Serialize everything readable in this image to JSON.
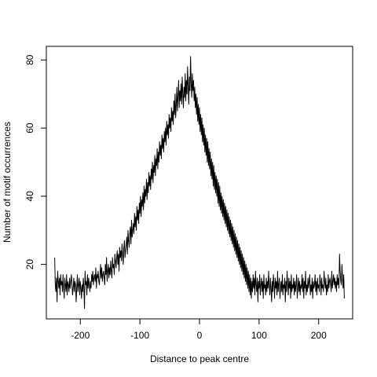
{
  "chart_data": {
    "type": "line",
    "title": "",
    "xlabel": "Distance to peak centre",
    "ylabel": "Number of motif occurrences",
    "xlim": [
      -257,
      257
    ],
    "ylim": [
      4,
      84
    ],
    "xticks": [
      -200,
      -100,
      0,
      100,
      200
    ],
    "xtick_labels": [
      "-200",
      "-100",
      "0",
      "100",
      "200"
    ],
    "yticks": [
      20,
      40,
      60,
      80
    ],
    "ytick_labels": [
      "20",
      "40",
      "60",
      "80"
    ],
    "grid": false,
    "legend": "none",
    "line_color": "#000000",
    "x_start": -243,
    "x_end": 243,
    "x_step": 1,
    "y": [
      22,
      14,
      12,
      16,
      9,
      18,
      15,
      13,
      16,
      11,
      17,
      14,
      15,
      12,
      17,
      13,
      10,
      16,
      14,
      12,
      17,
      11,
      15,
      14,
      12,
      16,
      13,
      15,
      17,
      14,
      11,
      13,
      16,
      12,
      15,
      14,
      9,
      13,
      17,
      12,
      14,
      16,
      11,
      15,
      13,
      10,
      14,
      12,
      16,
      13,
      7,
      18,
      14,
      15,
      11,
      17,
      13,
      16,
      14,
      12,
      15,
      13,
      17,
      15,
      18,
      14,
      16,
      17,
      15,
      19,
      13,
      17,
      16,
      18,
      15,
      14,
      17,
      20,
      16,
      19,
      15,
      17,
      18,
      16,
      14,
      20,
      17,
      22,
      15,
      18,
      20,
      16,
      19,
      17,
      21,
      18,
      16,
      22,
      19,
      20,
      17,
      23,
      21,
      19,
      22,
      24,
      20,
      23,
      18,
      25,
      22,
      24,
      21,
      26,
      23,
      20,
      25,
      27,
      22,
      24,
      26,
      28,
      23,
      30,
      27,
      25,
      29,
      31,
      26,
      33,
      28,
      30,
      32,
      29,
      35,
      31,
      34,
      30,
      37,
      33,
      36,
      32,
      38,
      35,
      40,
      34,
      39,
      37,
      41,
      36,
      43,
      38,
      42,
      40,
      45,
      39,
      44,
      41,
      47,
      43,
      46,
      42,
      48,
      45,
      50,
      44,
      49,
      47,
      52,
      46,
      51,
      49,
      54,
      48,
      53,
      50,
      56,
      52,
      55,
      51,
      58,
      54,
      57,
      53,
      59,
      56,
      60,
      55,
      62,
      58,
      61,
      57,
      64,
      60,
      63,
      59,
      66,
      62,
      65,
      61,
      68,
      64,
      70,
      63,
      67,
      72,
      65,
      69,
      74,
      66,
      71,
      68,
      73,
      67,
      75,
      70,
      66,
      72,
      69,
      76,
      68,
      74,
      70,
      78,
      72,
      67,
      75,
      71,
      81,
      73,
      69,
      76,
      71,
      74,
      68,
      72,
      66,
      70,
      64,
      69,
      62,
      67,
      61,
      66,
      59,
      64,
      58,
      63,
      56,
      61,
      55,
      60,
      53,
      58,
      52,
      57,
      50,
      56,
      49,
      54,
      48,
      53,
      46,
      51,
      45,
      50,
      43,
      49,
      42,
      47,
      41,
      46,
      40,
      45,
      38,
      44,
      37,
      43,
      36,
      41,
      35,
      40,
      34,
      39,
      33,
      38,
      32,
      37,
      31,
      36,
      30,
      35,
      29,
      34,
      28,
      33,
      27,
      32,
      26,
      31,
      25,
      30,
      24,
      29,
      23,
      28,
      22,
      27,
      21,
      26,
      20,
      25,
      19,
      24,
      18,
      23,
      17,
      22,
      16,
      21,
      15,
      20,
      14,
      19,
      13,
      18,
      12,
      17,
      11,
      16,
      10,
      15,
      12,
      17,
      13,
      16,
      11,
      18,
      14,
      12,
      16,
      9,
      15,
      13,
      17,
      11,
      14,
      16,
      12,
      15,
      10,
      17,
      13,
      14,
      11,
      16,
      12,
      15,
      13,
      18,
      14,
      11,
      16,
      13,
      9,
      15,
      12,
      17,
      14,
      10,
      16,
      13,
      15,
      11,
      18,
      12,
      14,
      16,
      10,
      13,
      15,
      12,
      17,
      11,
      14,
      13,
      16,
      9,
      15,
      12,
      18,
      14,
      11,
      16,
      13,
      15,
      10,
      17,
      12,
      14,
      13,
      16,
      11,
      15,
      12,
      14,
      17,
      10,
      13,
      16,
      12,
      15,
      11,
      14,
      13,
      17,
      12,
      16,
      10,
      15,
      13,
      18,
      11,
      14,
      12,
      16,
      13,
      15,
      17,
      11,
      14,
      12,
      16,
      10,
      15,
      13,
      14,
      17,
      12,
      15,
      11,
      16,
      13,
      14,
      12,
      17,
      15,
      11,
      16,
      13,
      14,
      12,
      18,
      15,
      13,
      16,
      11,
      14,
      12,
      17,
      13,
      15,
      16,
      14,
      12,
      18,
      13,
      15,
      17,
      14,
      16,
      13,
      15,
      12,
      17,
      14,
      16,
      13,
      23,
      18,
      15,
      14,
      20,
      16,
      13,
      17,
      10
    ]
  }
}
